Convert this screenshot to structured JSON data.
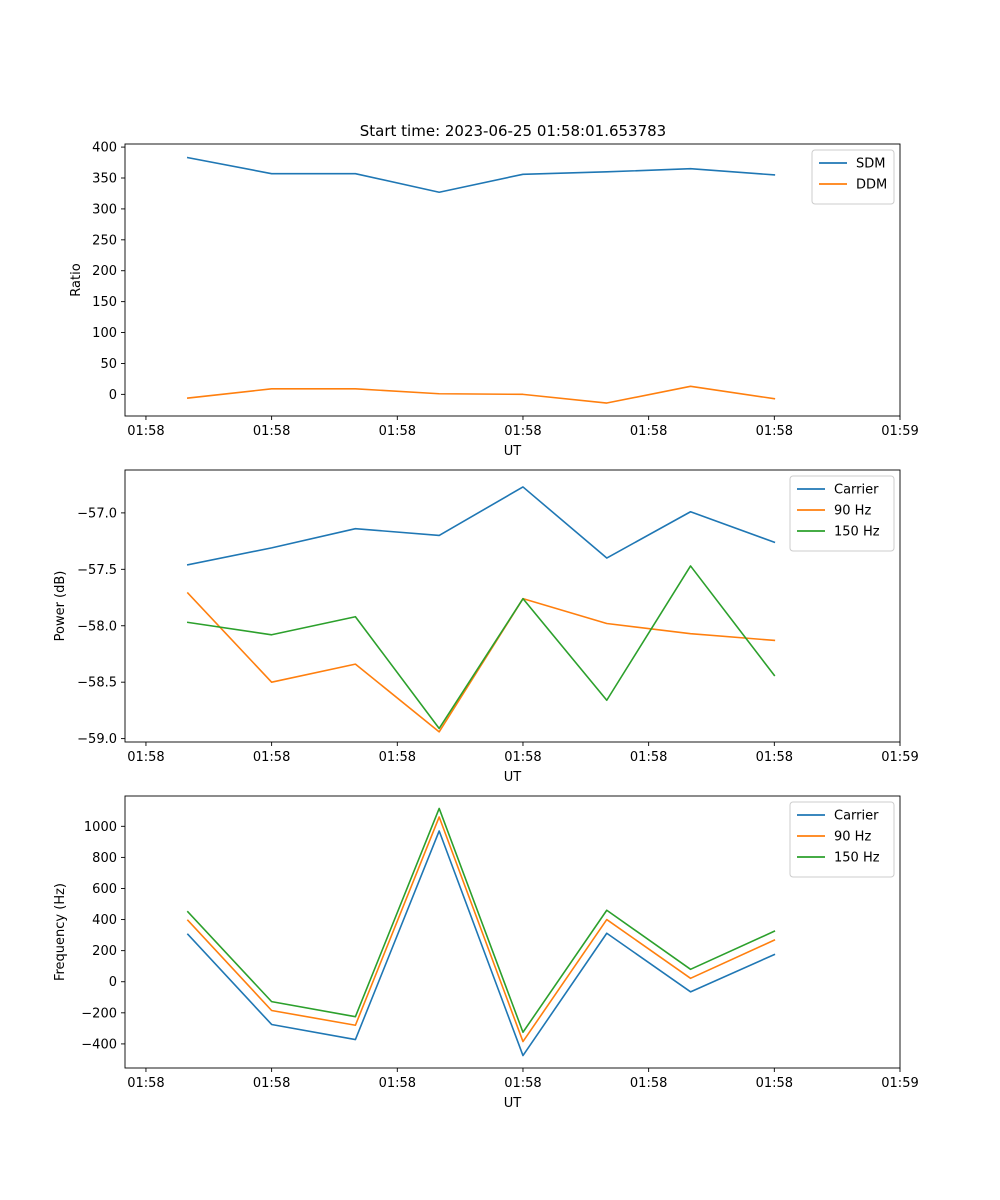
{
  "chart_data": [
    {
      "type": "line",
      "title": "Start time: 2023-06-25 01:58:01.653783",
      "xlabel": "UT",
      "ylabel": "Ratio",
      "x": [
        1,
        2,
        3,
        4,
        5,
        6,
        7,
        8
      ],
      "xlim": [
        0.25,
        9.5
      ],
      "xticks": [
        0.5,
        2,
        3.5,
        5,
        6.5,
        8,
        9.5
      ],
      "xtick_labels": [
        "01:58",
        "01:58",
        "01:58",
        "01:58",
        "01:58",
        "01:58",
        "01:59"
      ],
      "ylim": [
        -35,
        405
      ],
      "yticks": [
        0,
        50,
        100,
        150,
        200,
        250,
        300,
        350,
        400
      ],
      "ytick_labels": [
        "0",
        "50",
        "100",
        "150",
        "200",
        "250",
        "300",
        "350",
        "400"
      ],
      "legend_position": "top-right",
      "series": [
        {
          "name": "SDM",
          "color": "#1f77b4",
          "values": [
            383,
            357,
            357,
            327,
            356,
            360,
            365,
            355
          ]
        },
        {
          "name": "DDM",
          "color": "#ff7f0e",
          "values": [
            -6,
            9,
            9,
            1,
            0,
            -14,
            13,
            -7
          ]
        }
      ]
    },
    {
      "type": "line",
      "title": "",
      "xlabel": "UT",
      "ylabel": "Power (dB)",
      "x": [
        1,
        2,
        3,
        4,
        5,
        6,
        7,
        8
      ],
      "xlim": [
        0.25,
        9.5
      ],
      "xticks": [
        0.5,
        2,
        3.5,
        5,
        6.5,
        8,
        9.5
      ],
      "xtick_labels": [
        "01:58",
        "01:58",
        "01:58",
        "01:58",
        "01:58",
        "01:58",
        "01:59"
      ],
      "ylim": [
        -59.03,
        -56.62
      ],
      "yticks": [
        -59.0,
        -58.5,
        -58.0,
        -57.5,
        -57.0
      ],
      "ytick_labels": [
        "−59.0",
        "−58.5",
        "−58.0",
        "−57.5",
        "−57.0"
      ],
      "legend_position": "top-right",
      "series": [
        {
          "name": "Carrier",
          "color": "#1f77b4",
          "values": [
            -57.46,
            -57.31,
            -57.14,
            -57.2,
            -56.77,
            -57.4,
            -56.99,
            -57.26
          ]
        },
        {
          "name": "90 Hz",
          "color": "#ff7f0e",
          "values": [
            -57.71,
            -58.5,
            -58.34,
            -58.94,
            -57.76,
            -57.98,
            -58.07,
            -58.13
          ]
        },
        {
          "name": "150 Hz",
          "color": "#2ca02c",
          "values": [
            -57.97,
            -58.08,
            -57.92,
            -58.91,
            -57.76,
            -58.66,
            -57.47,
            -58.44
          ]
        }
      ]
    },
    {
      "type": "line",
      "title": "",
      "xlabel": "UT",
      "ylabel": "Frequency (Hz)",
      "x": [
        1,
        2,
        3,
        4,
        5,
        6,
        7,
        8
      ],
      "xlim": [
        0.25,
        9.5
      ],
      "xticks": [
        0.5,
        2,
        3.5,
        5,
        6.5,
        8,
        9.5
      ],
      "xtick_labels": [
        "01:58",
        "01:58",
        "01:58",
        "01:58",
        "01:58",
        "01:58",
        "01:59"
      ],
      "ylim": [
        -555,
        1195
      ],
      "yticks": [
        -400,
        -200,
        0,
        200,
        400,
        600,
        800,
        1000
      ],
      "ytick_labels": [
        "−400",
        "−200",
        "0",
        "200",
        "400",
        "600",
        "800",
        "1000"
      ],
      "legend_position": "top-right",
      "series": [
        {
          "name": "Carrier",
          "color": "#1f77b4",
          "values": [
            305,
            -275,
            -372,
            970,
            -475,
            312,
            -65,
            175
          ]
        },
        {
          "name": "90 Hz",
          "color": "#ff7f0e",
          "values": [
            395,
            -185,
            -280,
            1060,
            -385,
            400,
            22,
            268
          ]
        },
        {
          "name": "150 Hz",
          "color": "#2ca02c",
          "values": [
            450,
            -128,
            -225,
            1115,
            -325,
            460,
            80,
            325
          ]
        }
      ]
    }
  ]
}
